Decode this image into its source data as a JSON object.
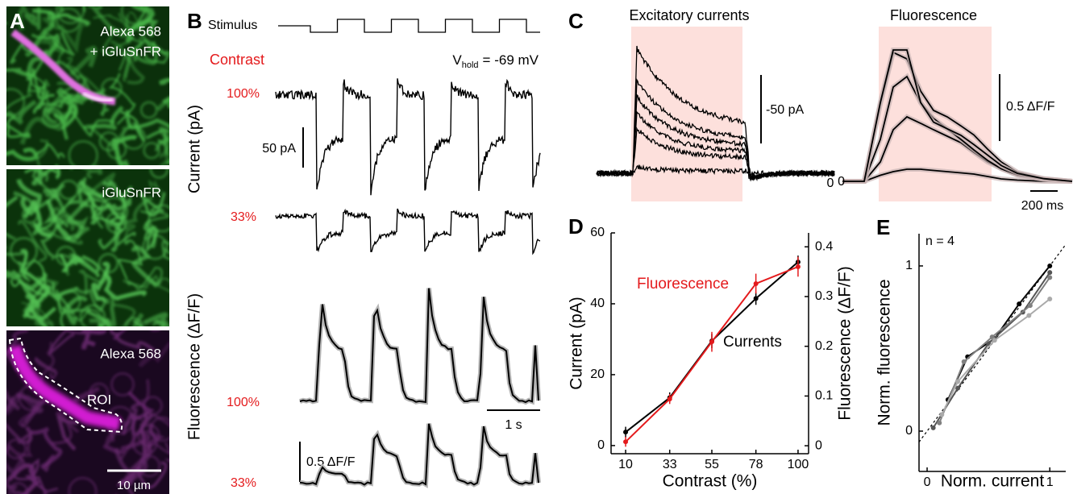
{
  "panels": {
    "A": {
      "label": "A",
      "image1_lines": [
        "Alexa 568",
        "+ iGluSnFR"
      ],
      "image2_label": "iGluSnFR",
      "image3_label": "Alexa 568",
      "roi_label": "ROI",
      "scale_bar": "10 µm"
    },
    "B": {
      "label": "B",
      "stimulus": "Stimulus",
      "contrast": "Contrast",
      "v_hold": "V",
      "v_hold_sub": "hold",
      "v_hold_value": "= -69 mV",
      "current_ylabel": "Current (pA)",
      "current_levels": [
        "100%",
        "33%"
      ],
      "current_scale": "50 pA",
      "fluor_ylabel": "Fluorescence (ΔF/F)",
      "fluor_levels": [
        "100%",
        "33%"
      ],
      "fluor_scale": "0.5 ΔF/F",
      "time_scale": "1 s"
    },
    "C": {
      "label": "C",
      "currents_title": "Excitatory currents",
      "fluor_title": "Fluorescence",
      "current_scale": "-50 pA",
      "fluor_scale": "0.5 ΔF/F",
      "current_zero": "0",
      "fluor_zero": "0",
      "time_scale": "200 ms"
    }
  },
  "chart_data": [
    {
      "type": "line",
      "label": "D",
      "xlabel": "Contrast (%)",
      "ylabel": "Current (pA)",
      "y2label": "Fluorescence (ΔF/F)",
      "x": [
        10,
        33,
        55,
        78,
        100
      ],
      "xlim": [
        2.4,
        105.5
      ],
      "xticks": [
        10,
        33,
        55,
        78,
        100
      ],
      "ylim": [
        -2.3,
        60
      ],
      "yticks": [
        0,
        20,
        40,
        60
      ],
      "y2lim": [
        -0.016,
        0.428
      ],
      "y2ticks": [
        0,
        0.1,
        0.2,
        0.3,
        0.4
      ],
      "series": [
        {
          "name": "Currents",
          "color": "#000000",
          "values": [
            3.8,
            13.5,
            29.5,
            41.5,
            51.8
          ],
          "errors": [
            1.5,
            1.5,
            2,
            1.8,
            1.8
          ]
        },
        {
          "name": "Fluorescence",
          "color": "#e41a1c",
          "axis": "y2",
          "values": [
            0.008,
            0.094,
            0.209,
            0.326,
            0.36
          ],
          "errors": [
            0.01,
            0.01,
            0.02,
            0.02,
            0.02
          ]
        }
      ]
    },
    {
      "type": "line",
      "label": "E",
      "annotation": "n = 4",
      "xlabel": "Norm. current",
      "ylabel": "Norm. fluorescence",
      "xlim": [
        -0.066,
        1.13
      ],
      "xticks": [
        0,
        1
      ],
      "ylim": [
        -0.244,
        1.195
      ],
      "yticks": [
        0,
        1
      ],
      "series": [
        {
          "color": "#000000",
          "x": [
            0.17,
            0.33,
            0.55,
            0.75,
            1.0
          ],
          "values": [
            0.19,
            0.45,
            0.56,
            0.77,
            1.0
          ]
        },
        {
          "color": "#555555",
          "x": [
            0.05,
            0.25,
            0.5,
            0.78,
            1.0
          ],
          "values": [
            0.02,
            0.26,
            0.53,
            0.72,
            0.96
          ]
        },
        {
          "color": "#808080",
          "x": [
            0.1,
            0.3,
            0.53,
            0.84,
            1.0
          ],
          "values": [
            0.05,
            0.42,
            0.57,
            0.76,
            0.93
          ]
        },
        {
          "color": "#aaaaaa",
          "x": [
            0.12,
            0.25,
            0.55,
            0.83,
            1.0
          ],
          "values": [
            0.1,
            0.3,
            0.55,
            0.7,
            0.8
          ]
        }
      ]
    }
  ]
}
